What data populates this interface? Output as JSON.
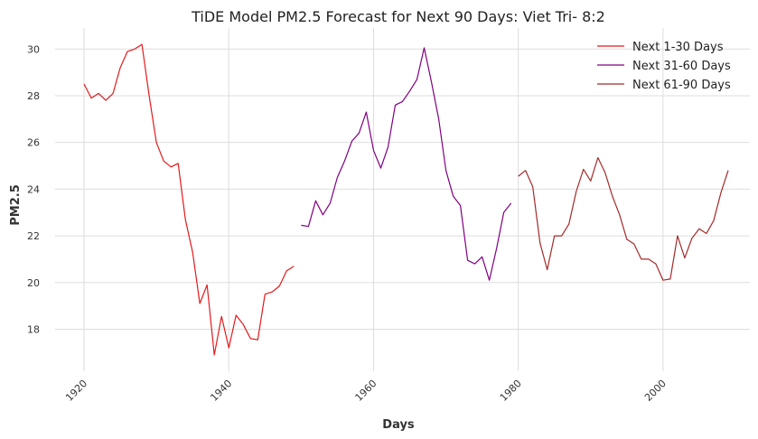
{
  "chart_data": {
    "type": "line",
    "title": "TiDE Model PM2.5 Forecast for Next 90 Days: Viet Tri- 8:2",
    "xlabel": "Days",
    "ylabel": "PM2.5",
    "xlim": [
      1916,
      2012
    ],
    "ylim": [
      16.2,
      30.9
    ],
    "x_ticks": [
      1920,
      1940,
      1960,
      1980,
      2000
    ],
    "y_ticks": [
      18,
      20,
      22,
      24,
      26,
      28,
      30
    ],
    "grid": true,
    "legend_position": "top-right",
    "series": [
      {
        "name": "Next 1-30 Days",
        "color": "#e31a1c",
        "x": [
          1920,
          1921,
          1922,
          1923,
          1924,
          1925,
          1926,
          1927,
          1928,
          1929,
          1930,
          1931,
          1932,
          1933,
          1934,
          1935,
          1936,
          1937,
          1938,
          1939,
          1940,
          1941,
          1942,
          1943,
          1944,
          1945,
          1946,
          1947,
          1948,
          1949
        ],
        "values": [
          28.5,
          27.9,
          28.1,
          27.8,
          28.1,
          29.2,
          29.9,
          30.0,
          30.2,
          28.0,
          26.0,
          25.2,
          24.95,
          25.1,
          22.7,
          21.3,
          19.1,
          19.9,
          16.9,
          18.55,
          17.2,
          18.6,
          18.2,
          17.6,
          17.55,
          19.5,
          19.6,
          19.85,
          20.5,
          20.7
        ]
      },
      {
        "name": "Next 31-60 Days",
        "color": "#800080",
        "x": [
          1950,
          1951,
          1952,
          1953,
          1954,
          1955,
          1956,
          1957,
          1958,
          1959,
          1960,
          1961,
          1962,
          1963,
          1964,
          1965,
          1966,
          1967,
          1968,
          1969,
          1970,
          1971,
          1972,
          1973,
          1974,
          1975,
          1976,
          1977,
          1978,
          1979
        ],
        "values": [
          22.45,
          22.4,
          23.5,
          22.9,
          23.4,
          24.5,
          25.2,
          26.05,
          26.4,
          27.3,
          25.65,
          24.9,
          25.8,
          27.6,
          27.75,
          28.2,
          28.7,
          30.05,
          28.6,
          27.0,
          24.8,
          23.7,
          23.3,
          20.95,
          20.8,
          21.1,
          20.1,
          21.45,
          23.0,
          23.4
        ]
      },
      {
        "name": "Next 61-90 Days",
        "color": "#a52a2a",
        "x": [
          1980,
          1981,
          1982,
          1983,
          1984,
          1985,
          1986,
          1987,
          1988,
          1989,
          1990,
          1991,
          1992,
          1993,
          1994,
          1995,
          1996,
          1997,
          1998,
          1999,
          2000,
          2001,
          2002,
          2003,
          2004,
          2005,
          2006,
          2007,
          2008,
          2009
        ],
        "values": [
          24.55,
          24.8,
          24.1,
          21.7,
          20.55,
          22.0,
          22.0,
          22.5,
          23.9,
          24.85,
          24.35,
          25.35,
          24.7,
          23.7,
          22.9,
          21.85,
          21.65,
          21.0,
          21.0,
          20.8,
          20.1,
          20.15,
          22.0,
          21.05,
          21.9,
          22.3,
          22.1,
          22.65,
          23.85,
          24.8
        ]
      }
    ]
  }
}
